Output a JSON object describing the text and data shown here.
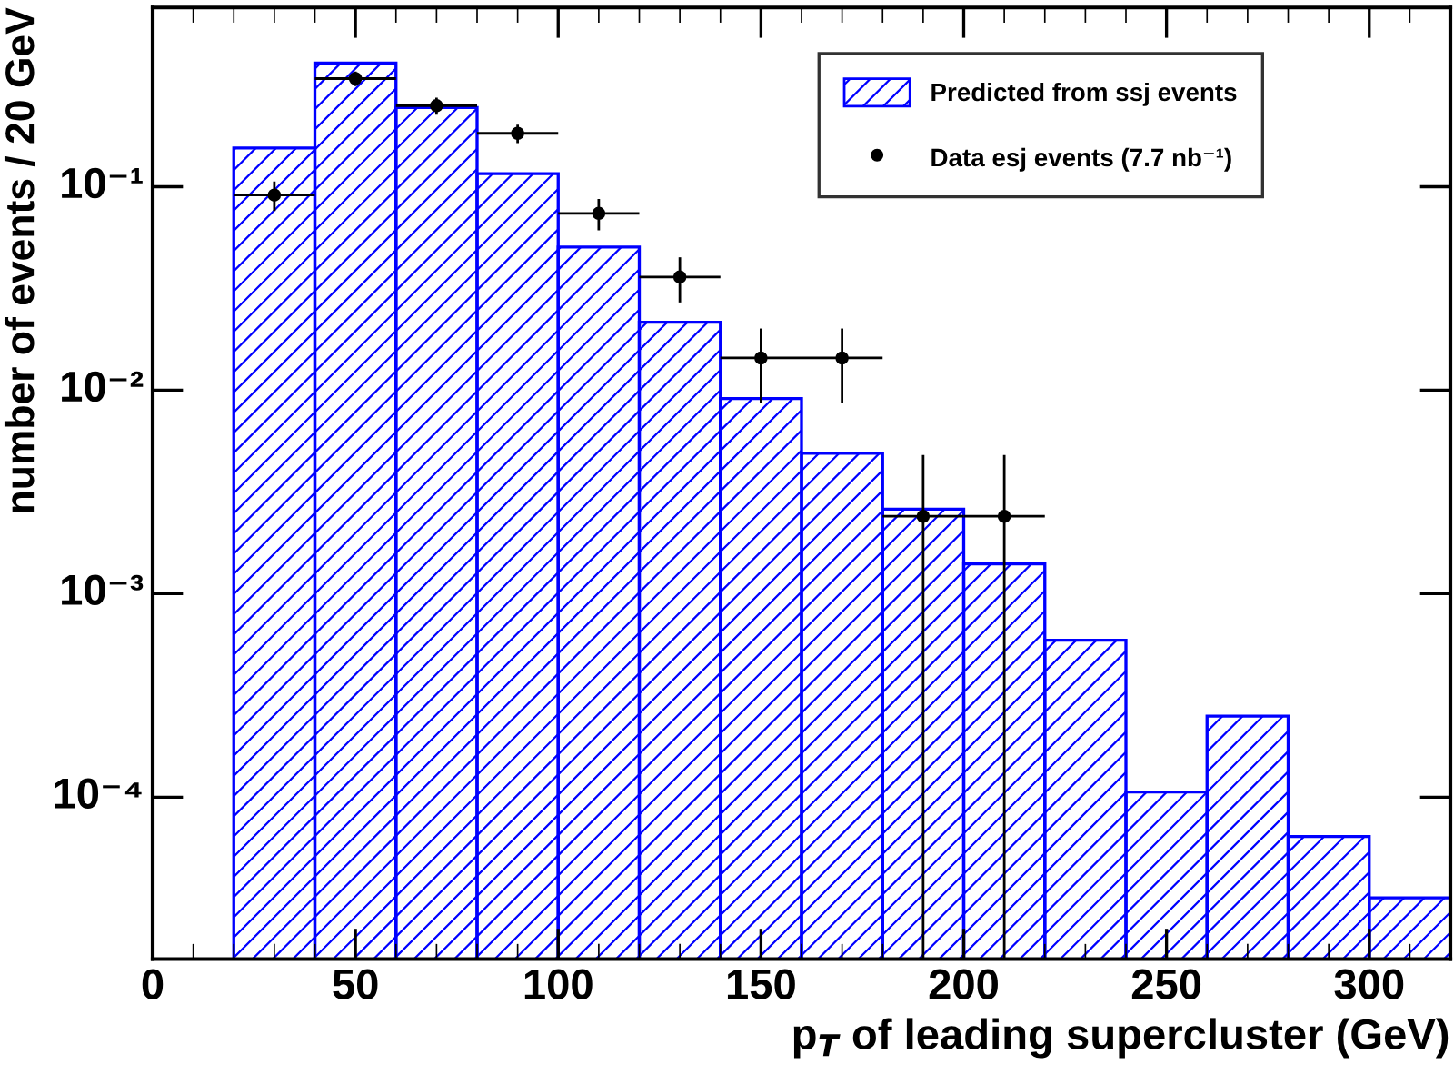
{
  "chart_data": {
    "type": "histogram",
    "xlabel": "p$_{T}$ of leading supercluster (GeV)",
    "ylabel": "number of events / 20 GeV",
    "log": "y",
    "xlim": [
      0,
      320
    ],
    "xticks": [
      0,
      50,
      100,
      150,
      200,
      250,
      300
    ],
    "ylim": [
      1.6e-05,
      0.76
    ],
    "yticks": [
      {
        "value": 0.0001,
        "label": "10⁻⁴"
      },
      {
        "value": 0.001,
        "label": "10⁻³"
      },
      {
        "value": 0.01,
        "label": "10⁻²"
      },
      {
        "value": 0.1,
        "label": "10⁻¹"
      }
    ],
    "legend": "top right",
    "grid": false,
    "series": [
      {
        "name": "Predicted from ssj events",
        "color": "#0000ff",
        "bins": [
          20,
          40,
          60,
          80,
          100,
          120,
          140,
          160,
          180,
          200,
          220,
          240,
          260,
          280,
          300,
          320
        ],
        "values": [
          0.155,
          0.405,
          0.245,
          0.116,
          0.0505,
          0.0216,
          0.0091,
          0.0049,
          0.0026,
          0.0014,
          0.00059,
          0.000106,
          0.00025,
          6.4e-05,
          3.2e-05
        ]
      },
      {
        "type": "scatter",
        "name": "Data esj events (7.7 nb⁻¹)",
        "color": "#000000",
        "marker": "circle",
        "x": [
          30,
          50,
          70,
          90,
          110,
          130,
          150,
          170,
          190,
          210
        ],
        "values": [
          0.091,
          0.34,
          0.25,
          0.183,
          0.074,
          0.036,
          0.0144,
          0.0144,
          0.0024,
          0.0024
        ],
        "errors": [
          0.015,
          0.028,
          0.024,
          0.019,
          0.013,
          0.009,
          0.0057,
          0.0057,
          [
            0.002384,
            0.0024
          ],
          [
            0.002384,
            0.0024
          ]
        ],
        "xerrors": [
          10,
          10,
          10,
          10,
          10,
          10,
          10,
          10,
          10,
          10
        ]
      }
    ]
  }
}
